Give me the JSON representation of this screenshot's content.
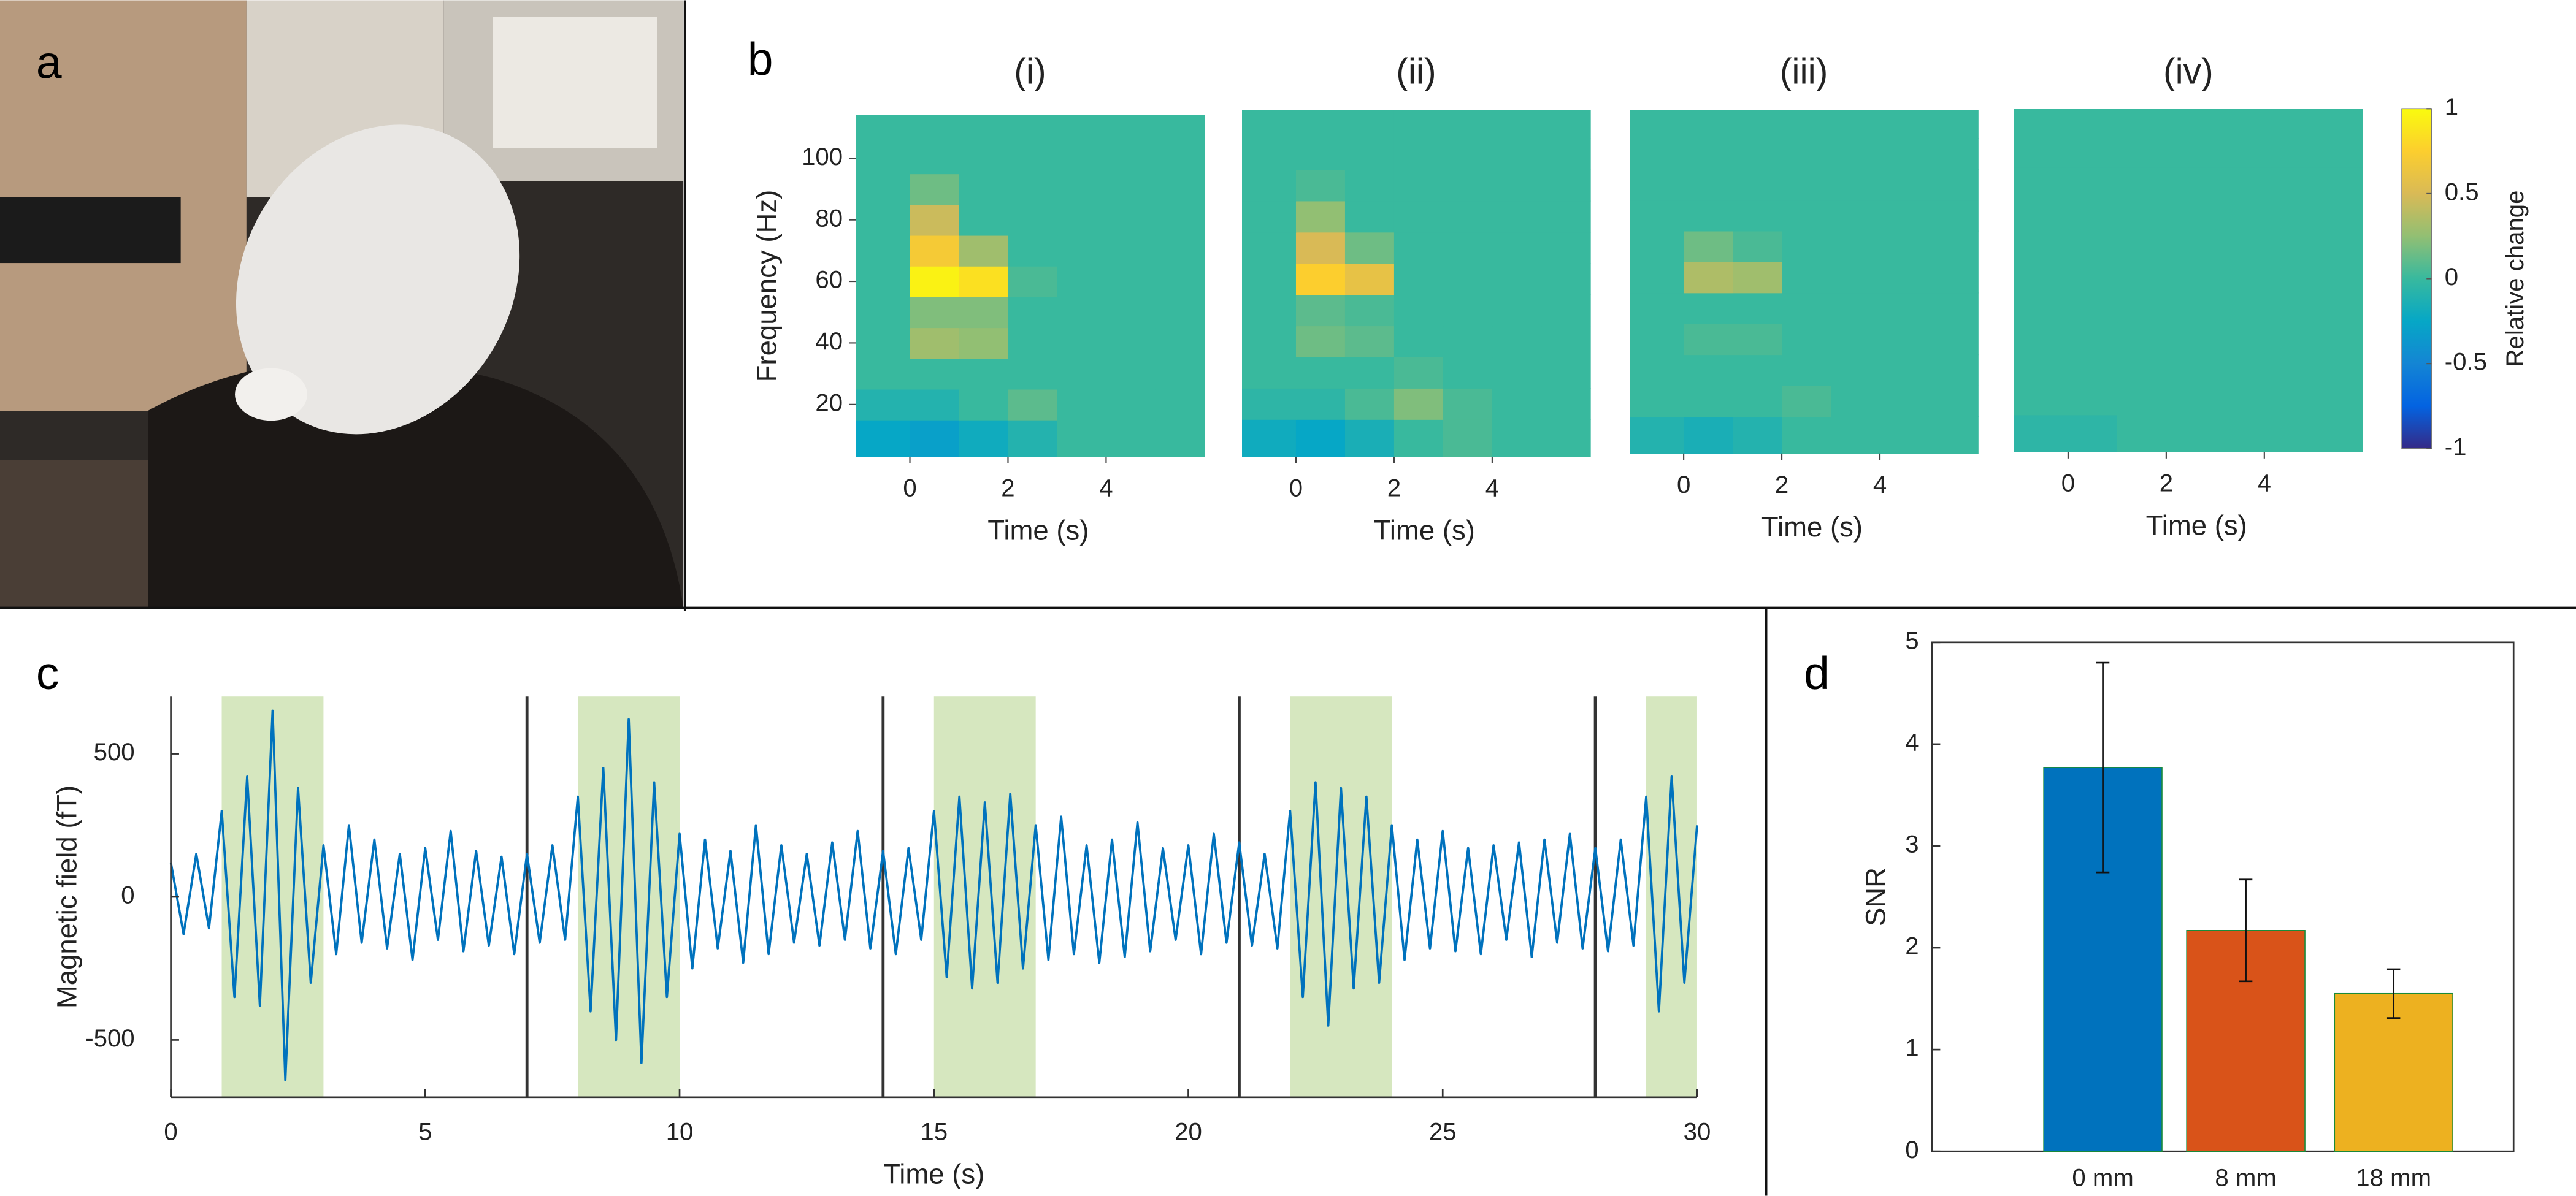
{
  "chart_data": [
    {
      "type": "image",
      "panel_label": "a"
    },
    {
      "type": "heatmap",
      "panel_label": "b",
      "title": "(i)",
      "xlabel": "Time (s)",
      "ylabel": "Frequency (Hz)",
      "xlim": [
        -1.1,
        6
      ],
      "ylim": [
        3,
        114
      ],
      "xticks": [
        0,
        2,
        4
      ],
      "yticks": [
        20,
        40,
        60,
        80,
        100
      ],
      "xbins": [
        -1.1,
        0,
        1,
        2,
        3,
        4,
        5,
        6
      ],
      "ybins": [
        3,
        15,
        25,
        35,
        45,
        55,
        65,
        75,
        85,
        95,
        105,
        114
      ],
      "z": [
        [
          -0.25,
          -0.3,
          -0.2,
          -0.1,
          0,
          0,
          0
        ],
        [
          -0.1,
          -0.1,
          0,
          0.1,
          0,
          0,
          0
        ],
        [
          0,
          0,
          0,
          0,
          0,
          0,
          0
        ],
        [
          0,
          0.3,
          0.25,
          0,
          0,
          0,
          0
        ],
        [
          0,
          0.2,
          0.2,
          0,
          0,
          0,
          0
        ],
        [
          0,
          0.95,
          0.85,
          0.05,
          0,
          0,
          0
        ],
        [
          0,
          0.7,
          0.3,
          0,
          0,
          0,
          0
        ],
        [
          0,
          0.45,
          0,
          0,
          0,
          0,
          0
        ],
        [
          0,
          0.15,
          0,
          0,
          0,
          0,
          0
        ],
        [
          0,
          0,
          0,
          0,
          0,
          0,
          0
        ],
        [
          0,
          0,
          0,
          0,
          0,
          0,
          0
        ]
      ]
    },
    {
      "type": "heatmap",
      "title": "(ii)",
      "xlabel": "Time (s)",
      "xlim": [
        -1.1,
        6
      ],
      "ylim": [
        3,
        114
      ],
      "xticks": [
        0,
        2,
        4
      ],
      "xbins": [
        -1.1,
        0,
        1,
        2,
        3,
        4,
        5,
        6
      ],
      "ybins": [
        3,
        15,
        25,
        35,
        45,
        55,
        65,
        75,
        85,
        95,
        105,
        114
      ],
      "z": [
        [
          -0.2,
          -0.25,
          -0.15,
          0,
          0.05,
          0,
          0
        ],
        [
          -0.05,
          -0.05,
          0.05,
          0.2,
          0.05,
          0,
          0
        ],
        [
          0,
          0,
          0,
          0.05,
          0,
          0,
          0
        ],
        [
          0,
          0.15,
          0.1,
          0,
          0,
          0,
          0
        ],
        [
          0,
          0.1,
          0.05,
          0,
          0,
          0,
          0
        ],
        [
          0,
          0.75,
          0.6,
          0,
          0,
          0,
          0
        ],
        [
          0,
          0.5,
          0.15,
          0,
          0,
          0,
          0
        ],
        [
          0,
          0.25,
          0,
          0,
          0,
          0,
          0
        ],
        [
          0,
          0.05,
          0,
          0,
          0,
          0,
          0
        ],
        [
          0,
          0,
          0,
          0,
          0,
          0,
          0
        ],
        [
          0,
          0,
          0,
          0,
          0,
          0,
          0
        ]
      ]
    },
    {
      "type": "heatmap",
      "title": "(iii)",
      "xlabel": "Time (s)",
      "xlim": [
        -1.1,
        6
      ],
      "ylim": [
        3,
        114
      ],
      "xticks": [
        0,
        2,
        4
      ],
      "xbins": [
        -1.1,
        0,
        1,
        2,
        3,
        4,
        5,
        6
      ],
      "ybins": [
        3,
        15,
        25,
        35,
        45,
        55,
        65,
        75,
        85,
        95,
        105,
        114
      ],
      "z": [
        [
          -0.1,
          -0.15,
          -0.1,
          0,
          0,
          0,
          0
        ],
        [
          0,
          0,
          0,
          0.05,
          0,
          0,
          0
        ],
        [
          0,
          0,
          0,
          0,
          0,
          0,
          0
        ],
        [
          0,
          0.05,
          0.05,
          0,
          0,
          0,
          0
        ],
        [
          0,
          0,
          0,
          0,
          0,
          0,
          0
        ],
        [
          0,
          0.35,
          0.3,
          0,
          0,
          0,
          0
        ],
        [
          0,
          0.15,
          0.05,
          0,
          0,
          0,
          0
        ],
        [
          0,
          0,
          0,
          0,
          0,
          0,
          0
        ],
        [
          0,
          0,
          0,
          0,
          0,
          0,
          0
        ],
        [
          0,
          0,
          0,
          0,
          0,
          0,
          0
        ],
        [
          0,
          0,
          0,
          0,
          0,
          0,
          0
        ]
      ]
    },
    {
      "type": "heatmap",
      "title": "(iv)",
      "xlabel": "Time (s)",
      "xlim": [
        -1.1,
        6
      ],
      "ylim": [
        3,
        114
      ],
      "xticks": [
        0,
        2,
        4
      ],
      "xbins": [
        -1.1,
        0,
        1,
        2,
        3,
        4,
        5,
        6
      ],
      "ybins": [
        3,
        15,
        25,
        35,
        45,
        55,
        65,
        75,
        85,
        95,
        105,
        114
      ],
      "z": [
        [
          -0.05,
          -0.05,
          0,
          0,
          0,
          0,
          0
        ],
        [
          0,
          0,
          0,
          0,
          0,
          0,
          0
        ],
        [
          0,
          0,
          0,
          0,
          0,
          0,
          0
        ],
        [
          0,
          0,
          0,
          0,
          0,
          0,
          0
        ],
        [
          0,
          0,
          0,
          0,
          0,
          0,
          0
        ],
        [
          0,
          0,
          0,
          0,
          0,
          0,
          0
        ],
        [
          0,
          0,
          0,
          0,
          0,
          0,
          0
        ],
        [
          0,
          0,
          0,
          0,
          0,
          0,
          0
        ],
        [
          0,
          0,
          0,
          0,
          0,
          0,
          0
        ],
        [
          0,
          0,
          0,
          0,
          0,
          0,
          0
        ],
        [
          0,
          0,
          0,
          0,
          0,
          0,
          0
        ]
      ]
    },
    {
      "type": "colorbar",
      "label": "Relative change",
      "colormap": "parula",
      "clim": [
        -1,
        1
      ],
      "ticks": [
        -1,
        -0.5,
        0,
        0.5,
        1
      ]
    },
    {
      "type": "line",
      "panel_label": "c",
      "xlabel": "Time (s)",
      "ylabel": "Magnetic field (fT)",
      "xlim": [
        0,
        30
      ],
      "ylim": [
        -700,
        700
      ],
      "xticks": [
        0,
        5,
        10,
        15,
        20,
        25,
        30
      ],
      "yticks": [
        -500,
        0,
        500
      ],
      "color": "#0072BD",
      "span_color": "#d6e7bf",
      "spans": [
        [
          1,
          3
        ],
        [
          8,
          10
        ],
        [
          15,
          17
        ],
        [
          22,
          24
        ],
        [
          29,
          30
        ]
      ],
      "markers": [
        7,
        14,
        21,
        28
      ],
      "x": [
        0,
        0.25,
        0.5,
        0.75,
        1,
        1.25,
        1.5,
        1.75,
        2,
        2.25,
        2.5,
        2.75,
        3,
        3.25,
        3.5,
        3.75,
        4,
        4.25,
        4.5,
        4.75,
        5,
        5.25,
        5.5,
        5.75,
        6,
        6.25,
        6.5,
        6.75,
        7,
        7.25,
        7.5,
        7.75,
        8,
        8.25,
        8.5,
        8.75,
        9,
        9.25,
        9.5,
        9.75,
        10,
        10.25,
        10.5,
        10.75,
        11,
        11.25,
        11.5,
        11.75,
        12,
        12.25,
        12.5,
        12.75,
        13,
        13.25,
        13.5,
        13.75,
        14,
        14.25,
        14.5,
        14.75,
        15,
        15.25,
        15.5,
        15.75,
        16,
        16.25,
        16.5,
        16.75,
        17,
        17.25,
        17.5,
        17.75,
        18,
        18.25,
        18.5,
        18.75,
        19,
        19.25,
        19.5,
        19.75,
        20,
        20.25,
        20.5,
        20.75,
        21,
        21.25,
        21.5,
        21.75,
        22,
        22.25,
        22.5,
        22.75,
        23,
        23.25,
        23.5,
        23.75,
        24,
        24.25,
        24.5,
        24.75,
        25,
        25.25,
        25.5,
        25.75,
        26,
        26.25,
        26.5,
        26.75,
        27,
        27.25,
        27.5,
        27.75,
        28,
        28.25,
        28.5,
        28.75,
        29,
        29.25,
        29.5,
        29.75,
        30
      ],
      "values": [
        120,
        -130,
        150,
        -110,
        300,
        -350,
        420,
        -380,
        650,
        -640,
        380,
        -300,
        180,
        -200,
        250,
        -160,
        200,
        -180,
        150,
        -220,
        170,
        -150,
        230,
        -190,
        160,
        -170,
        140,
        -200,
        150,
        -160,
        180,
        -150,
        350,
        -400,
        450,
        -500,
        620,
        -580,
        400,
        -350,
        220,
        -250,
        200,
        -180,
        160,
        -230,
        250,
        -200,
        180,
        -160,
        150,
        -170,
        190,
        -150,
        230,
        -180,
        160,
        -200,
        170,
        -150,
        300,
        -280,
        350,
        -320,
        330,
        -300,
        360,
        -250,
        250,
        -220,
        280,
        -200,
        180,
        -230,
        200,
        -210,
        260,
        -190,
        170,
        -150,
        180,
        -200,
        220,
        -160,
        190,
        -170,
        150,
        -180,
        300,
        -350,
        400,
        -450,
        380,
        -320,
        350,
        -300,
        250,
        -220,
        200,
        -180,
        230,
        -190,
        170,
        -200,
        180,
        -150,
        190,
        -210,
        200,
        -160,
        220,
        -180,
        170,
        -190,
        200,
        -170,
        350,
        -400,
        420,
        -300,
        250
      ]
    },
    {
      "type": "bar",
      "panel_label": "d",
      "ylabel": "SNR",
      "categories": [
        "0 mm",
        "8 mm",
        "18 mm"
      ],
      "values": [
        3.77,
        2.17,
        1.55
      ],
      "errors": [
        1.03,
        0.5,
        0.24
      ],
      "colors": [
        "#0072BD",
        "#D95319",
        "#EDB120"
      ],
      "ylim": [
        0,
        5
      ],
      "yticks": [
        0,
        1,
        2,
        3,
        4,
        5
      ]
    }
  ]
}
